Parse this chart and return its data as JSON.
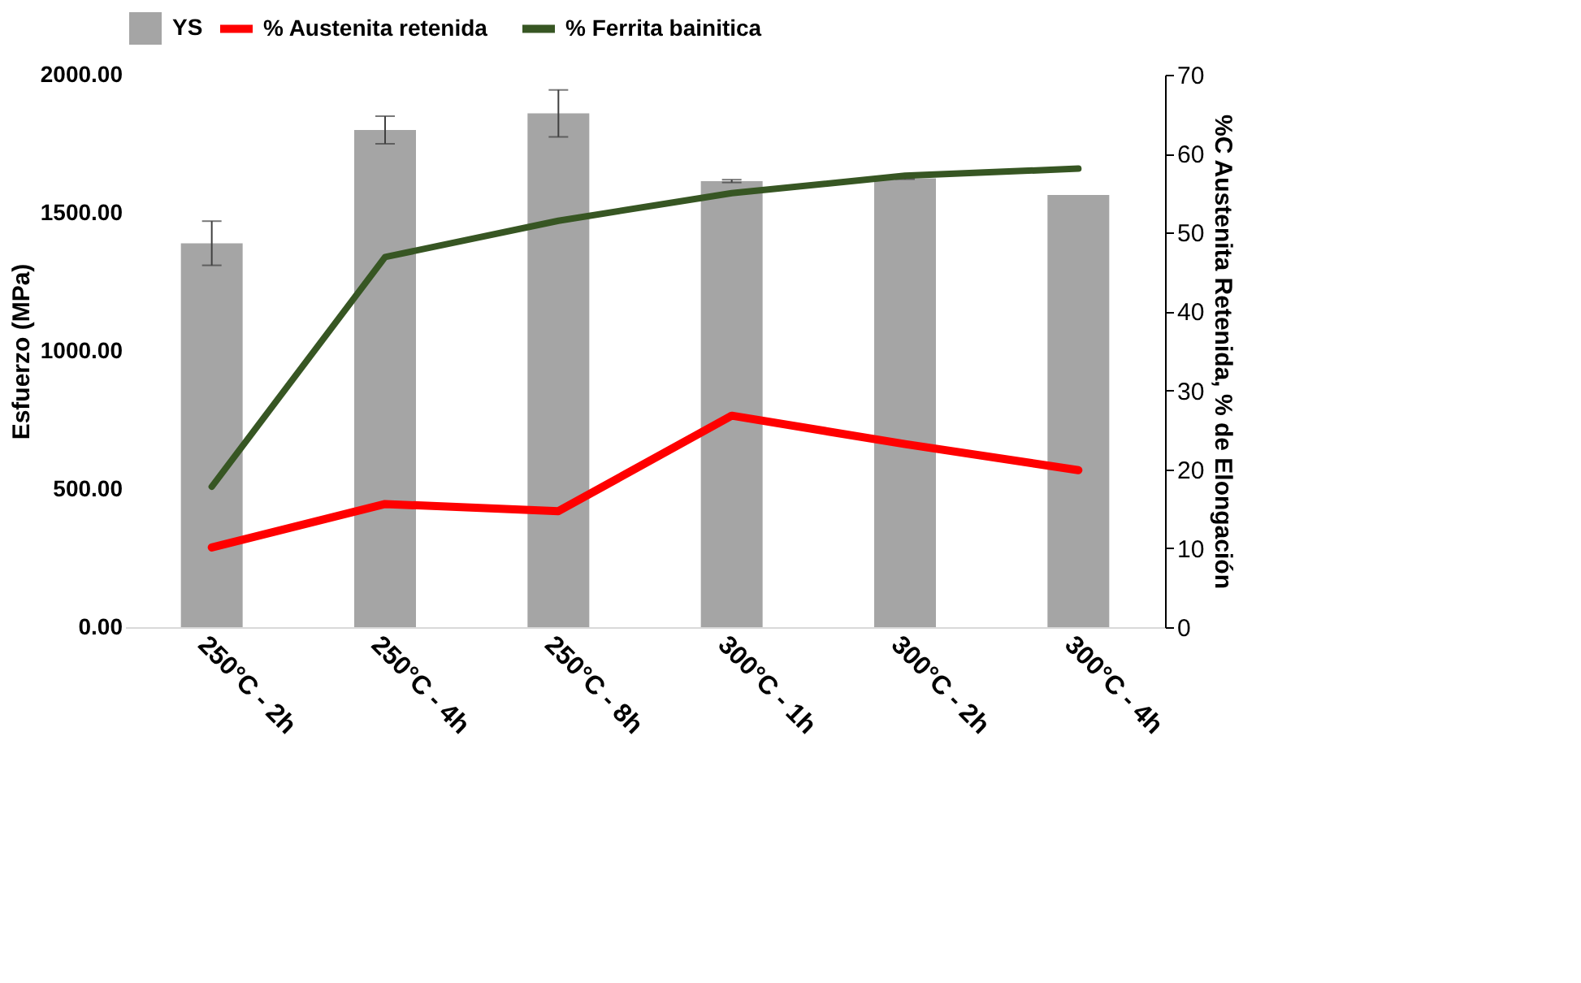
{
  "chart_data": {
    "type": "bar",
    "ylabel": "Esfuerzo (MPa)",
    "y2label": "%C  Austenita Retenida, % de Elongación",
    "categories": [
      "250°C - 2h",
      "250°C - 4h",
      "250°C - 8h",
      "300°C - 1h",
      "300°C - 2h",
      "300°C - 4h"
    ],
    "series": [
      {
        "name": "YS",
        "color": "#a5a5a5",
        "values": [
          1390,
          1800,
          1860,
          1615,
          1625,
          1565
        ],
        "errors": [
          80,
          50,
          85,
          5,
          3,
          null
        ]
      },
      {
        "name": "% Austenita retenida",
        "type": "line",
        "axis": "y2",
        "color": "#ff0000",
        "values": [
          10.1,
          15.6,
          14.7,
          26.8,
          23.2,
          19.9
        ]
      },
      {
        "name": "% Ferrita bainitica",
        "type": "line",
        "axis": "y2",
        "color": "#375623",
        "values": [
          17.8,
          46.9,
          51.5,
          55.0,
          57.2,
          58.1
        ]
      }
    ],
    "ylim": [
      0,
      2000
    ],
    "yticks": [
      {
        "value": 0,
        "label": "0.00"
      },
      {
        "value": 500,
        "label": "500.00"
      },
      {
        "value": 1000,
        "label": "1000.00"
      },
      {
        "value": 1500,
        "label": "1500.00"
      },
      {
        "value": 2000,
        "label": "2000.00"
      }
    ],
    "y2lim": [
      0,
      70
    ],
    "y2ticks": [
      0,
      10,
      20,
      30,
      40,
      50,
      60,
      70
    ],
    "legend": "top",
    "grid": false
  }
}
